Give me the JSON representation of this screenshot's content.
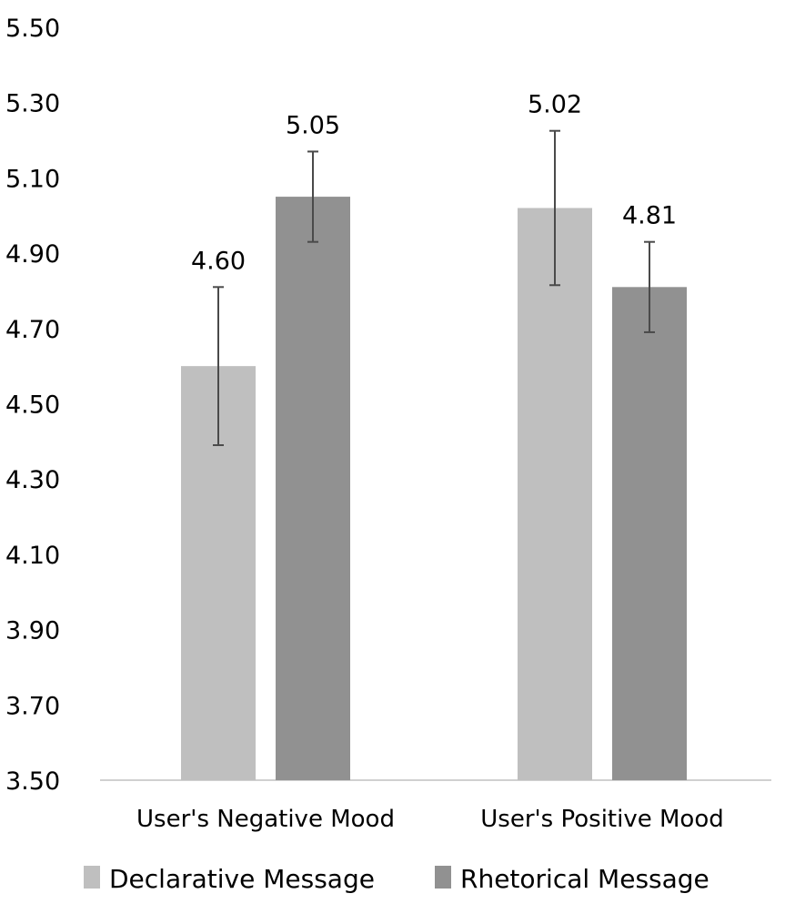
{
  "chart_data": {
    "type": "bar",
    "title": "",
    "xlabel": "",
    "ylabel": "",
    "ylim": [
      3.5,
      5.5
    ],
    "yticks": [
      "3.50",
      "3.70",
      "3.90",
      "4.10",
      "4.30",
      "4.50",
      "4.70",
      "4.90",
      "5.10",
      "5.30",
      "5.50"
    ],
    "categories": [
      "User's Negative Mood",
      "User's Positive Mood"
    ],
    "grid": false,
    "legend_position": "bottom",
    "series": [
      {
        "name": "Declarative Message",
        "color": "#bfbfbf",
        "values": [
          4.6,
          5.02
        ],
        "labels": [
          "4.60",
          "5.02"
        ],
        "errors": [
          0.21,
          0.205
        ]
      },
      {
        "name": "Rhetorical Message",
        "color": "#919191",
        "values": [
          5.05,
          4.81
        ],
        "labels": [
          "5.05",
          "4.81"
        ],
        "errors": [
          0.12,
          0.12
        ]
      }
    ]
  }
}
